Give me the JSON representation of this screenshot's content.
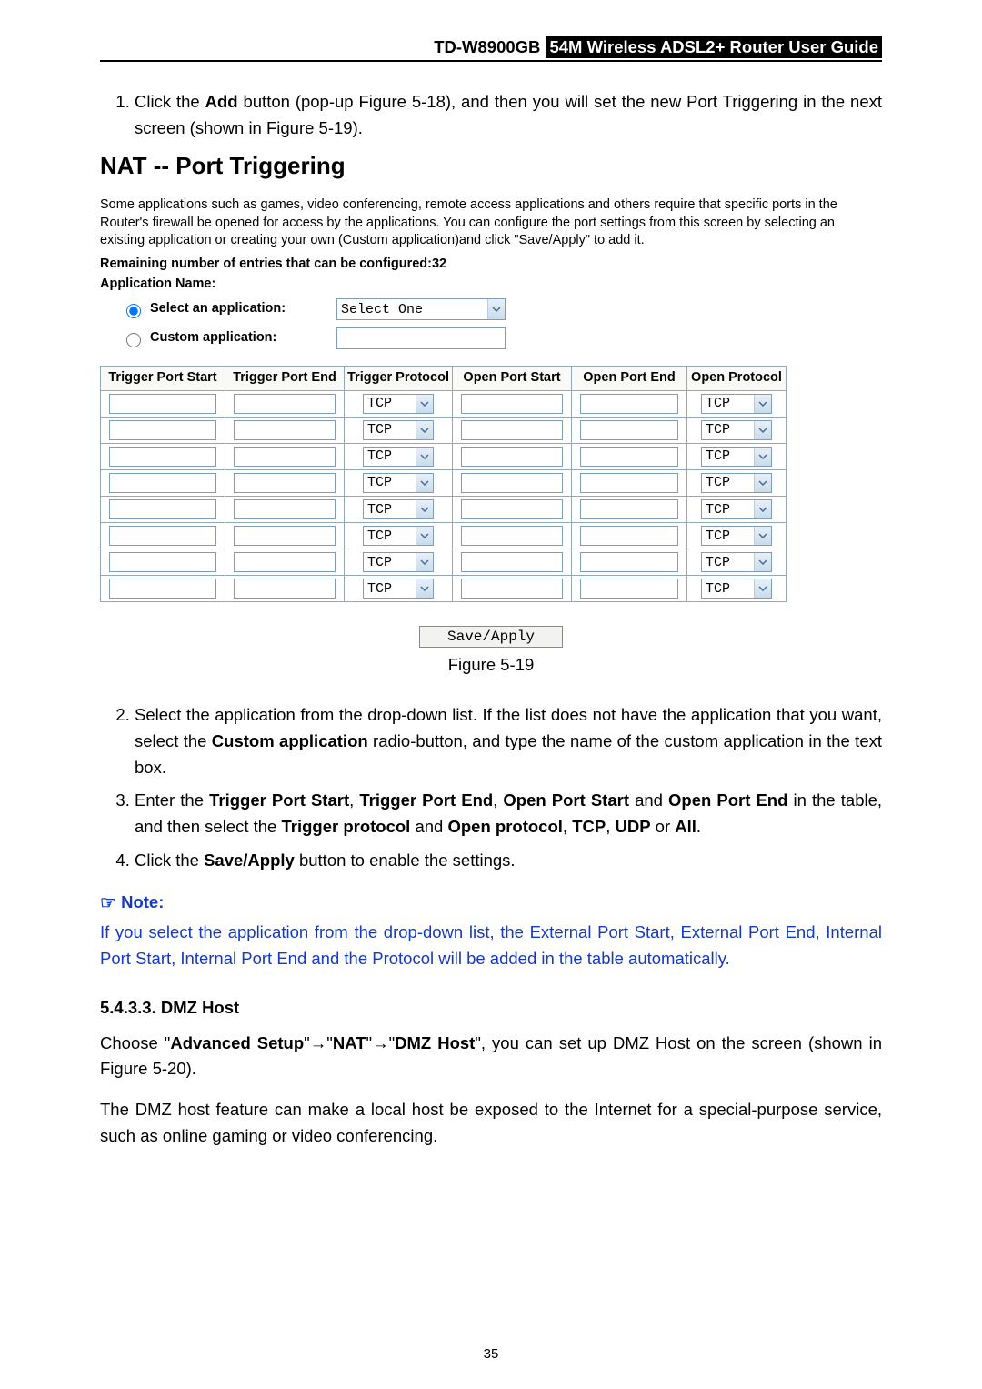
{
  "header": {
    "model": "TD-W8900GB",
    "guide": "54M  Wireless  ADSL2+  Router  User  Guide"
  },
  "step1": {
    "num": "1.",
    "pre": "Click the ",
    "bold1": "Add",
    "post": " button (pop-up Figure 5-18), and then you will set the new Port Triggering in the next screen (shown in Figure 5-19)."
  },
  "nat": {
    "title": "NAT -- Port Triggering",
    "desc": "Some applications such as games, video conferencing, remote access applications and others require that specific ports in the Router's firewall be opened for access by the applications. You can configure the port settings from this screen by selecting an existing application or creating your own (Custom application)and click \"Save/Apply\" to add it.",
    "remaining": "Remaining number of entries that can be configured:32",
    "appname": "Application Name:",
    "radio1": "Select an application:",
    "radio2": "Custom application:",
    "select_value": "Select One",
    "cols": [
      "Trigger Port Start",
      "Trigger Port End",
      "Trigger Protocol",
      "Open Port Start",
      "Open Port End",
      "Open Protocol"
    ],
    "proto": "TCP",
    "rows": 8,
    "savebtn": "Save/Apply",
    "figcap": "Figure 5-19"
  },
  "step2": {
    "num": "2.",
    "p1": "Select the application from the drop-down list. If the list does not have the application that you want, select the ",
    "b1": "Custom application",
    "p2": " radio-button, and type the name of the custom application in the text box."
  },
  "step3": {
    "num": "3.",
    "p1": "Enter the ",
    "b1": "Trigger Port Start",
    "c1": ", ",
    "b2": "Trigger Port End",
    "c2": ", ",
    "b3": "Open Port Start",
    "c3": " and ",
    "b4": "Open Port End",
    "p2": " in the table, and then select the ",
    "b5": "Trigger protocol",
    "c4": " and ",
    "b6": "Open protocol",
    "c5": ", ",
    "b7": "TCP",
    "c6": ", ",
    "b8": "UDP",
    "c7": " or ",
    "b9": "All",
    "c8": "."
  },
  "step4": {
    "num": "4.",
    "p1": "Click the ",
    "b1": "Save/Apply",
    "p2": " button to enable the settings."
  },
  "note": {
    "icon": "☞",
    "label": "  Note:",
    "body": "If you select the application from the drop-down list, the External Port Start, External Port End, Internal Port Start, Internal Port End and the Protocol will be added in the table automatically."
  },
  "dmz": {
    "heading": "5.4.3.3.  DMZ Host",
    "p1a": "Choose \"",
    "b1": "Advanced Setup",
    "p1b": "\"",
    "arrow": "→",
    "p1c": "\"",
    "b2": "NAT",
    "p1d": "\"",
    "p1e": "\"",
    "b3": "DMZ Host",
    "p1f": "\", you can set up DMZ Host on the screen (shown in Figure 5-20).",
    "p2": "The DMZ host feature can make a local host be exposed to the Internet for a special-purpose service, such as online gaming or video conferencing."
  },
  "pagenum": "35",
  "colors": {
    "link_blue": "#1439c3",
    "field_border": "#7f9db9",
    "table_border": "#94a7b5"
  }
}
